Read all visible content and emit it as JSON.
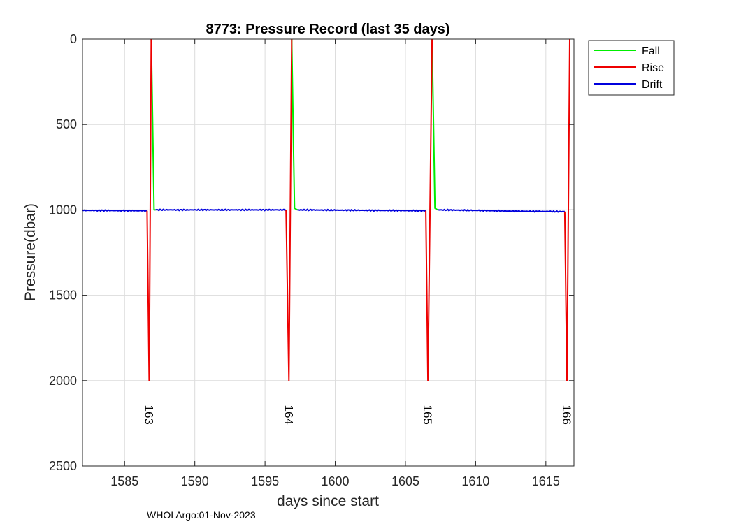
{
  "chart_data": {
    "type": "line",
    "title": "8773: Pressure Record (last 35 days)",
    "xlabel": "days since start",
    "ylabel": "Pressure(dbar)",
    "xlim": [
      1582,
      1617
    ],
    "ylim": [
      0,
      2500
    ],
    "y_reversed": true,
    "grid": true,
    "xticks": [
      1585,
      1590,
      1595,
      1600,
      1605,
      1610,
      1615
    ],
    "yticks": [
      0,
      500,
      1000,
      1500,
      2000,
      2500
    ],
    "xtick_labels": [
      "1585",
      "1590",
      "1595",
      "1600",
      "1605",
      "1610",
      "1615"
    ],
    "ytick_labels": [
      "0",
      "500",
      "1000",
      "1500",
      "2000",
      "2500"
    ],
    "legend": {
      "position": "outside-top-right",
      "entries": [
        "Fall",
        "Rise",
        "Drift"
      ]
    },
    "series": [
      {
        "name": "Fall",
        "color": "#00ee00",
        "segments": [
          [
            [
              1586.9,
              0
            ],
            [
              1587.1,
              1000
            ],
            [
              1587.2,
              1000
            ]
          ],
          [
            [
              1596.9,
              0
            ],
            [
              1597.1,
              990
            ],
            [
              1597.3,
              1000
            ]
          ],
          [
            [
              1606.9,
              0
            ],
            [
              1607.1,
              990
            ],
            [
              1607.3,
              1000
            ]
          ]
        ]
      },
      {
        "name": "Rise",
        "color": "#ee0000",
        "segments": [
          [
            [
              1586.6,
              1005
            ],
            [
              1586.75,
              2000
            ],
            [
              1586.9,
              0
            ]
          ],
          [
            [
              1596.5,
              1000
            ],
            [
              1596.7,
              2000
            ],
            [
              1596.9,
              0
            ]
          ],
          [
            [
              1606.45,
              1005
            ],
            [
              1606.6,
              2000
            ],
            [
              1606.9,
              0
            ]
          ],
          [
            [
              1616.35,
              1010
            ],
            [
              1616.5,
              2000
            ],
            [
              1616.7,
              0
            ]
          ]
        ]
      },
      {
        "name": "Drift",
        "color": "#0000dd",
        "segments": [
          [
            [
              1582.0,
              1003
            ],
            [
              1586.6,
              1005
            ]
          ],
          [
            [
              1587.2,
              1000
            ],
            [
              1596.5,
              1000
            ]
          ],
          [
            [
              1597.3,
              1000
            ],
            [
              1606.45,
              1005
            ]
          ],
          [
            [
              1607.3,
              1000
            ],
            [
              1610.0,
              1003
            ],
            [
              1613.0,
              1008
            ],
            [
              1616.35,
              1010
            ]
          ]
        ]
      }
    ],
    "annotations": [
      {
        "text": "163",
        "x": 1586.75,
        "y": 2200
      },
      {
        "text": "164",
        "x": 1596.7,
        "y": 2200
      },
      {
        "text": "165",
        "x": 1606.6,
        "y": 2200
      },
      {
        "text": "166",
        "x": 1616.5,
        "y": 2200
      }
    ],
    "footer": "WHOI Argo:01-Nov-2023"
  }
}
